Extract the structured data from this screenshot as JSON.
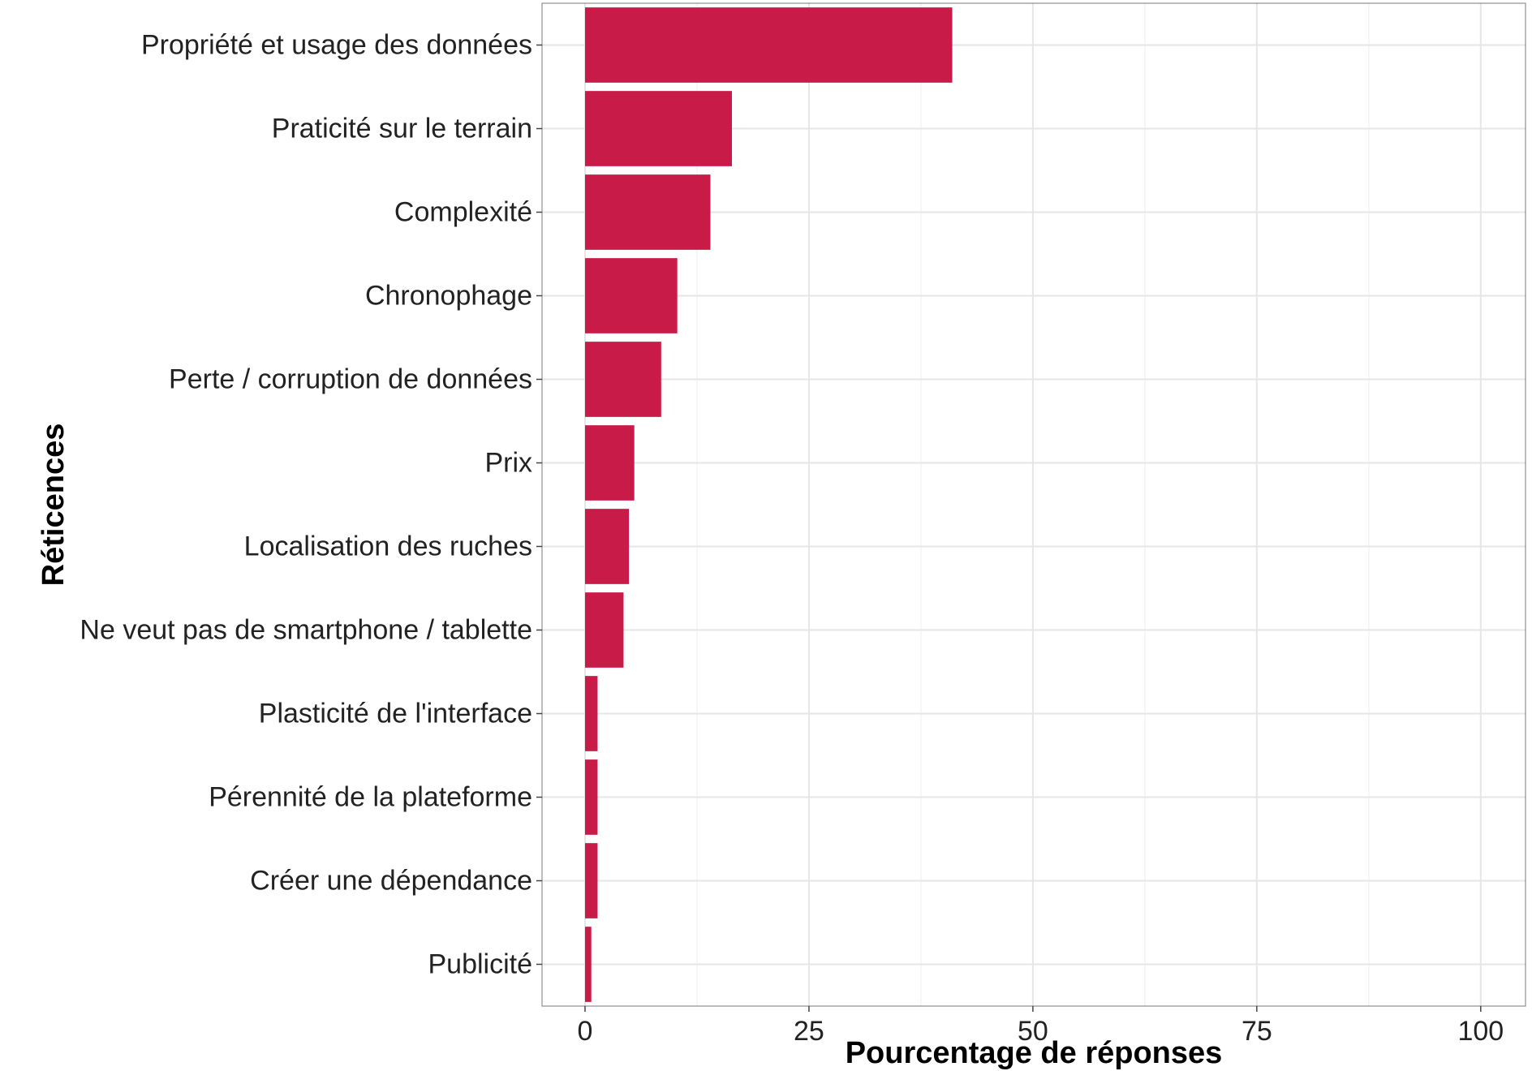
{
  "chart_data": {
    "type": "bar",
    "orientation": "horizontal",
    "categories": [
      "Propriété et usage des données",
      "Praticité sur le terrain",
      "Complexité",
      "Chronophage",
      "Perte / corruption de données",
      "Prix",
      "Localisation des ruches",
      "Ne veut pas de smartphone / tablette",
      "Plasticité de l'interface",
      "Pérennité de la plateforme",
      "Créer une dépendance",
      "Publicité"
    ],
    "values": [
      41,
      16.4,
      14,
      10.3,
      8.5,
      5.5,
      4.9,
      4.3,
      1.4,
      1.4,
      1.4,
      0.7
    ],
    "xlabel": "Pourcentage de réponses",
    "ylabel": "Réticences",
    "xlim": [
      -4.8,
      105
    ],
    "xticks": [
      0,
      25,
      50,
      75,
      100
    ],
    "bar_color": "#c91b48",
    "grid": true,
    "legend": "none"
  }
}
